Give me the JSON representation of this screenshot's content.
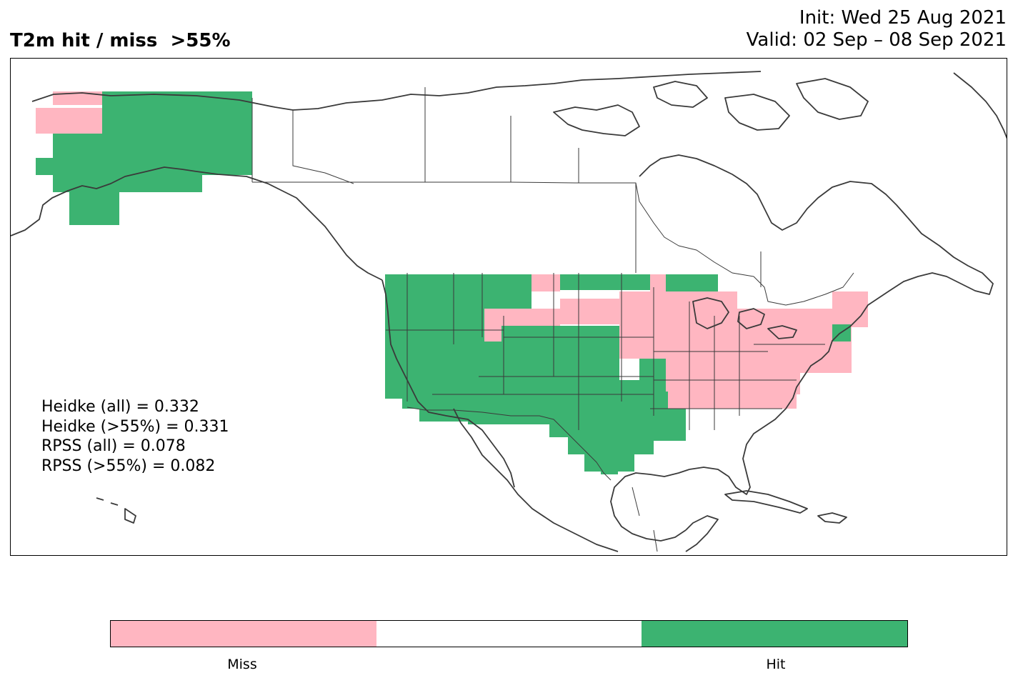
{
  "title": "T2m hit / miss  >55%",
  "init": "Init: Wed 25 Aug 2021",
  "valid": "Valid: 02 Sep – 08 Sep 2021",
  "scores": [
    "Heidke (all) = 0.332",
    "Heidke (>55%) = 0.331",
    "RPSS (all) = 0.078",
    "RPSS (>55%) = 0.082"
  ],
  "legend": {
    "labels": [
      "Miss",
      "Hit"
    ],
    "colors": {
      "miss": "#ffb6c1",
      "none": "#ffffff",
      "hit": "#3cb371"
    }
  },
  "map": {
    "region": "North America",
    "cell_categories": [
      "miss",
      "hit"
    ]
  }
}
